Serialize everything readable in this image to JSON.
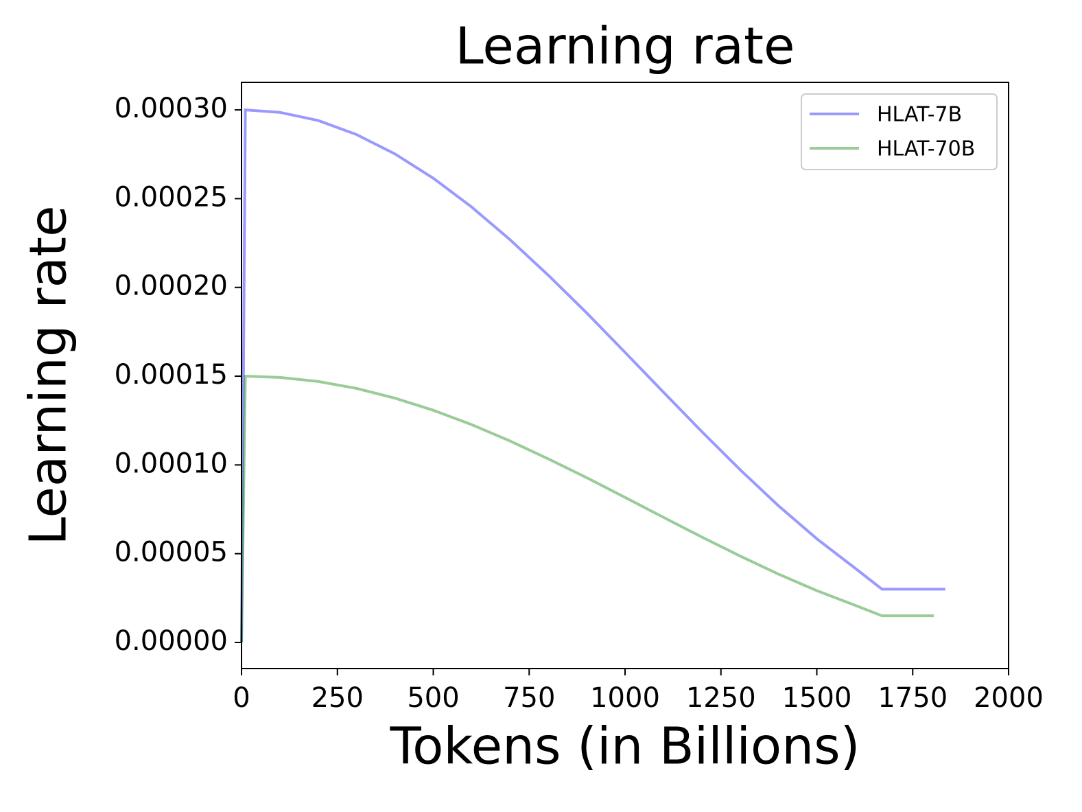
{
  "chart_data": {
    "type": "line",
    "title": "Learning rate",
    "x_label": "Tokens (in Billions)",
    "y_label": "Learning rate",
    "series": [
      {
        "name": "HLAT-7B",
        "color": "#0000ff",
        "x": [
          0,
          10,
          100,
          200,
          300,
          400,
          500,
          600,
          700,
          800,
          900,
          1000,
          1100,
          1200,
          1300,
          1400,
          1500,
          1600,
          1670,
          1835
        ],
        "values": [
          0,
          0.0003,
          0.0002986,
          0.000294,
          0.0002861,
          0.0002752,
          0.0002615,
          0.0002453,
          0.0002269,
          0.0002068,
          0.0001856,
          0.0001634,
          0.000141,
          0.0001188,
          9.73e-05,
          7.7e-05,
          5.84e-05,
          4.18e-05,
          3e-05,
          3e-05
        ]
      },
      {
        "name": "HLAT-70B",
        "color": "#008000",
        "x": [
          0,
          10,
          100,
          200,
          300,
          400,
          500,
          600,
          700,
          800,
          900,
          1000,
          1100,
          1200,
          1300,
          1400,
          1500,
          1600,
          1670,
          1805
        ],
        "values": [
          0,
          0.00015,
          0.0001493,
          0.000147,
          0.0001431,
          0.0001376,
          0.0001308,
          0.0001227,
          0.0001135,
          0.0001034,
          9.28e-05,
          8.17e-05,
          7.05e-05,
          5.94e-05,
          4.87e-05,
          3.85e-05,
          2.92e-05,
          2.09e-05,
          1.5e-05,
          1.5e-05
        ]
      }
    ],
    "xlim": [
      0,
      2000
    ],
    "xticks": [
      0,
      250,
      500,
      750,
      1000,
      1250,
      1500,
      1750,
      2000
    ],
    "ylim": [
      -1.47e-05,
      0.0003155
    ],
    "yticks": [
      {
        "value": 0,
        "label": "0.00000"
      },
      {
        "value": 5e-05,
        "label": "0.00005"
      },
      {
        "value": 0.0001,
        "label": "0.00010"
      },
      {
        "value": 0.00015,
        "label": "0.00015"
      },
      {
        "value": 0.0002,
        "label": "0.00020"
      },
      {
        "value": 0.00025,
        "label": "0.00025"
      },
      {
        "value": 0.0003,
        "label": "0.00030"
      }
    ],
    "line_alpha": 0.4,
    "legend": "upper right",
    "grid": false
  }
}
